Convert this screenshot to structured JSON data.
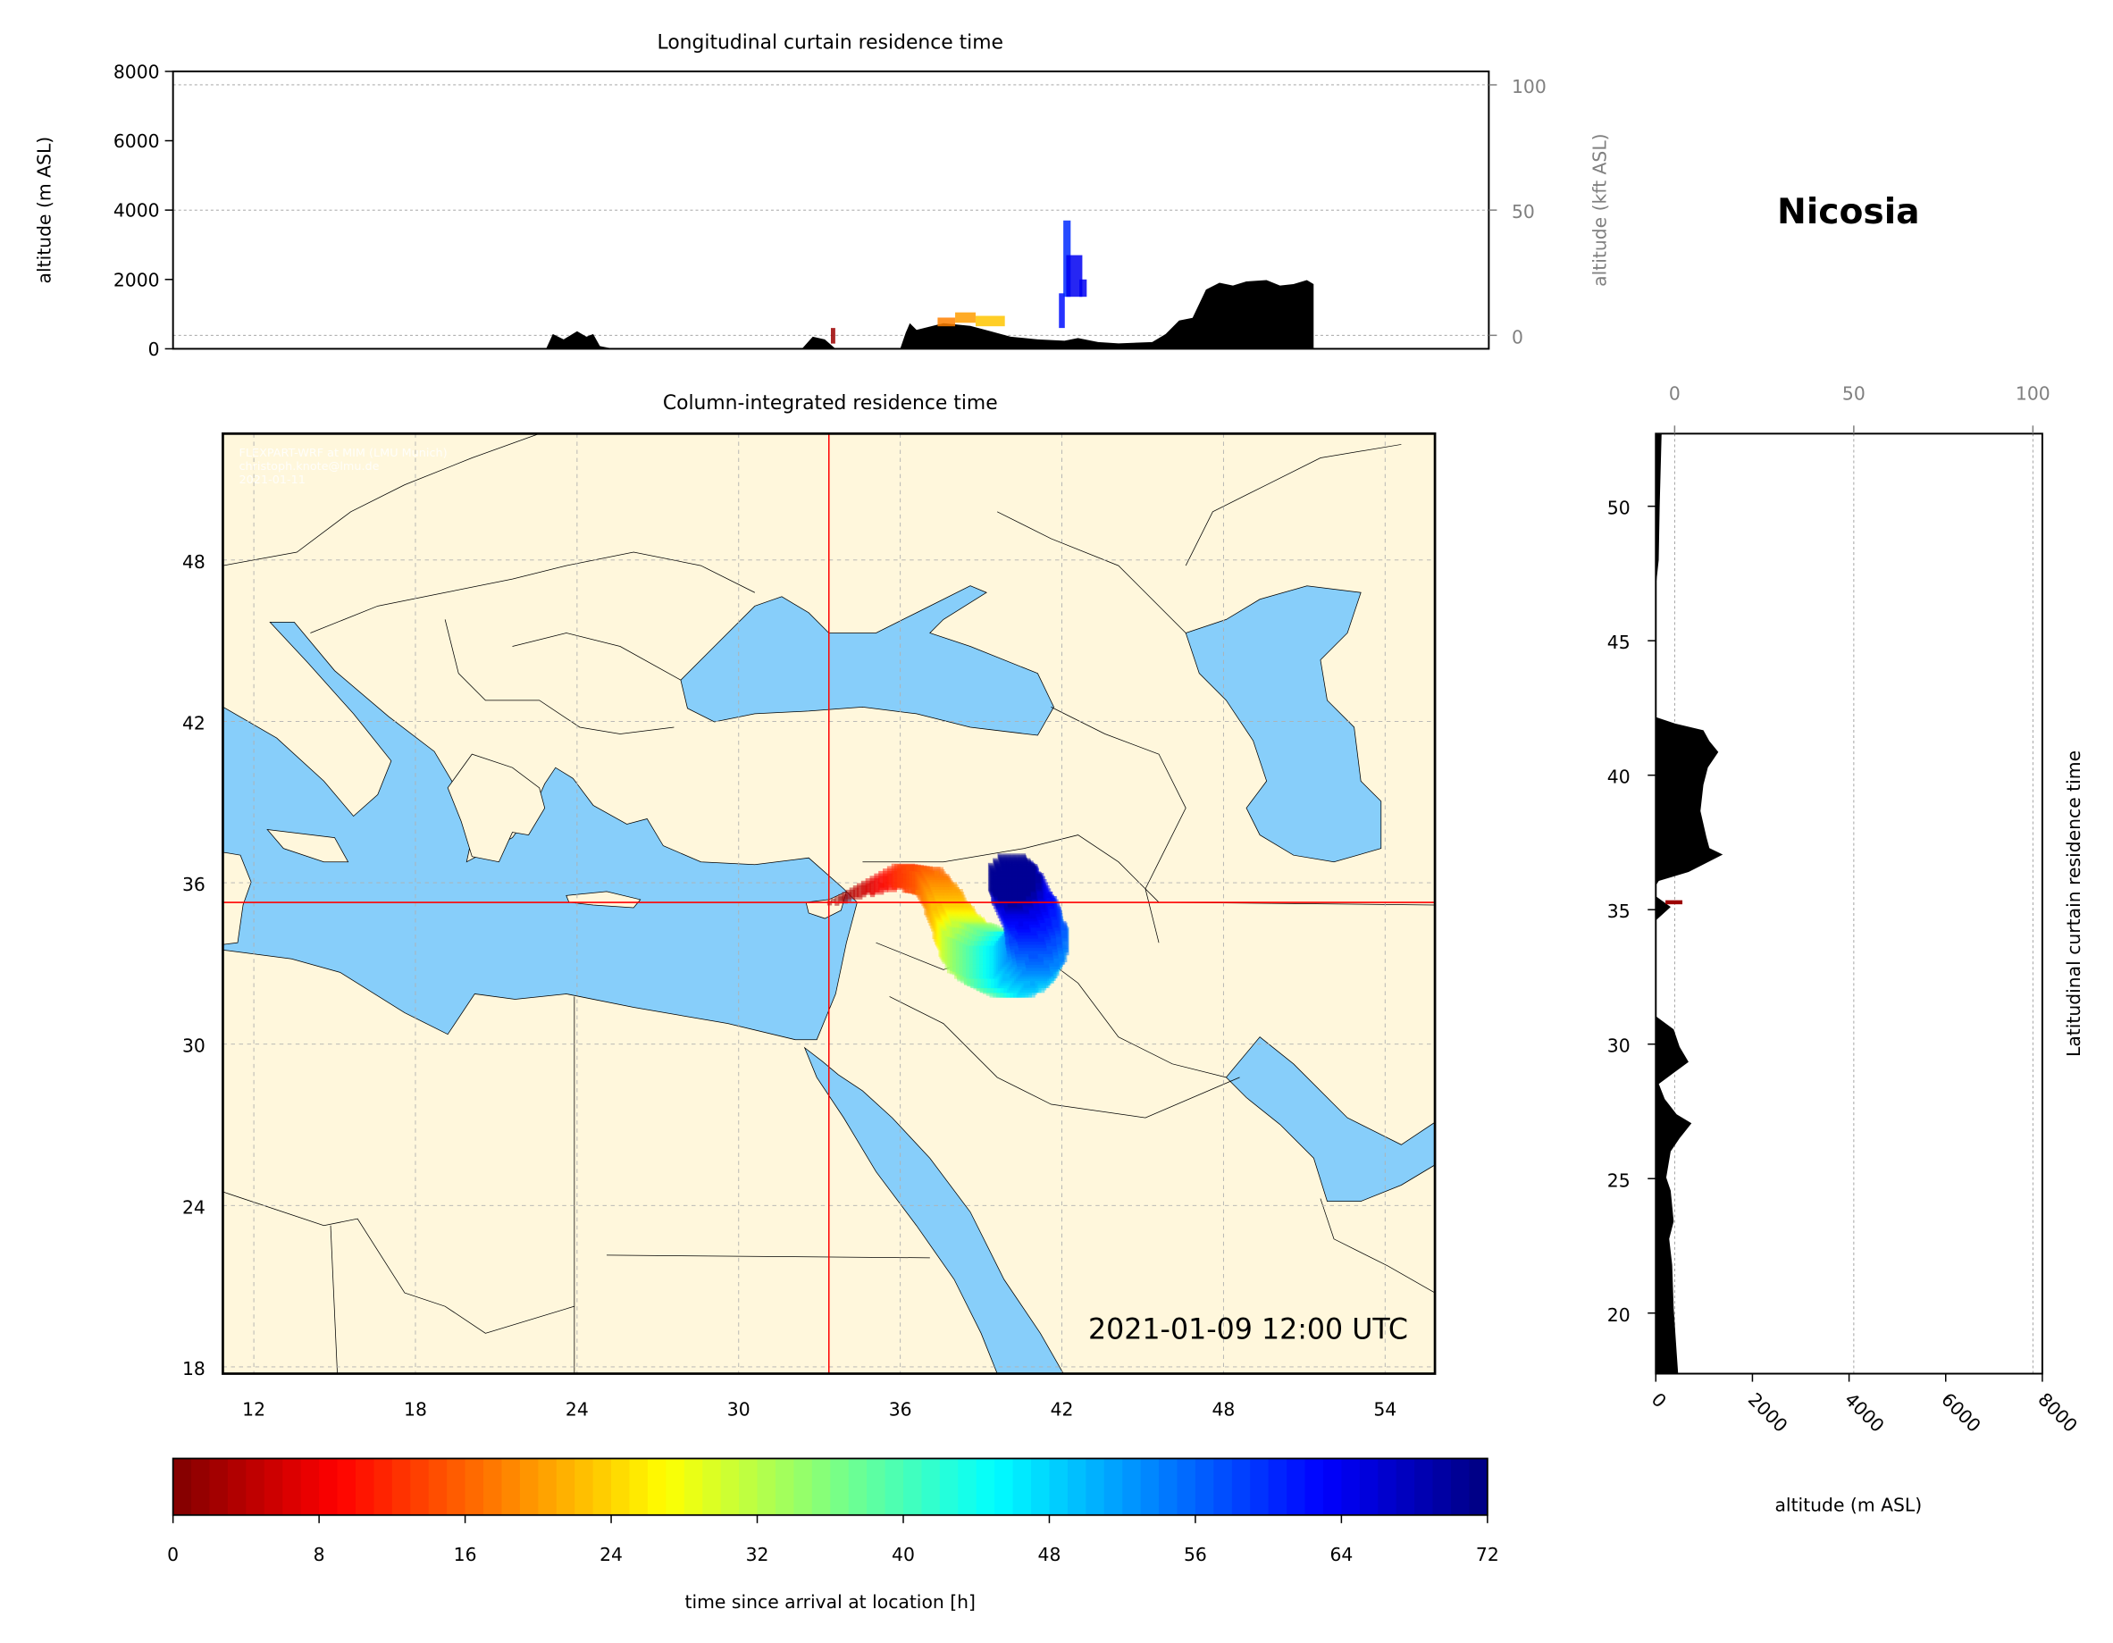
{
  "location": "Nicosia",
  "timestamp": "2021-01-09 12:00 UTC",
  "attribution": [
    "FLEXPART-WRF at MIM (LMU Munich)",
    "christoph.knote@lmu.de",
    "2021-01-11"
  ],
  "colors": {
    "land": "#fff7dc",
    "sea": "#87cefa",
    "crosshair": "#ff0000",
    "terrain": "#000000",
    "colormap": "jet"
  },
  "chart_data": [
    {
      "type": "area",
      "title": "Longitudinal curtain residence time",
      "xlabel": "",
      "ylabel": "altitude (m ASL)",
      "ylabel_right": "altitude (kft ASL)",
      "ylim": [
        0,
        8000
      ],
      "yticks": [
        "0",
        "2000",
        "4000",
        "6000",
        "8000"
      ],
      "yticks_right": [
        "0",
        "50",
        "100"
      ],
      "terrain_lon_alt": [
        [
          23.4,
          0
        ],
        [
          23.61,
          0
        ],
        [
          23.84,
          427
        ],
        [
          24.21,
          272
        ],
        [
          24.67,
          505
        ],
        [
          24.99,
          350
        ],
        [
          25.22,
          427
        ],
        [
          25.45,
          78
        ],
        [
          25.91,
          0
        ],
        [
          32.36,
          0
        ],
        [
          32.73,
          350
        ],
        [
          33.14,
          272
        ],
        [
          33.51,
          0
        ],
        [
          35.72,
          0
        ],
        [
          35.91,
          466
        ],
        [
          36.05,
          738
        ],
        [
          36.28,
          544
        ],
        [
          37.2,
          738
        ],
        [
          38.12,
          660
        ],
        [
          38.81,
          505
        ],
        [
          39.5,
          350
        ],
        [
          40.42,
          272
        ],
        [
          41.34,
          233
        ],
        [
          41.8,
          311
        ],
        [
          42.49,
          194
        ],
        [
          43.19,
          155
        ],
        [
          44.34,
          194
        ],
        [
          44.8,
          427
        ],
        [
          45.26,
          815
        ],
        [
          45.72,
          893
        ],
        [
          46.18,
          1709
        ],
        [
          46.64,
          1903
        ],
        [
          47.1,
          1825
        ],
        [
          47.56,
          1942
        ],
        [
          48.25,
          1980
        ],
        [
          48.71,
          1825
        ],
        [
          49.17,
          1864
        ],
        [
          49.63,
          1980
        ],
        [
          49.86,
          1864
        ],
        [
          49.86,
          0
        ]
      ],
      "residence_cells": [
        {
          "lon": [
            33.35,
            33.5
          ],
          "alt": [
            150,
            600
          ],
          "hours": 2
        },
        {
          "lon": [
            37.0,
            37.6
          ],
          "alt": [
            650,
            900
          ],
          "hours": 18
        },
        {
          "lon": [
            37.6,
            38.3
          ],
          "alt": [
            750,
            1050
          ],
          "hours": 20
        },
        {
          "lon": [
            38.3,
            39.3
          ],
          "alt": [
            650,
            950
          ],
          "hours": 23
        },
        {
          "lon": [
            41.15,
            41.35
          ],
          "alt": [
            600,
            1600
          ],
          "hours": 62
        },
        {
          "lon": [
            41.3,
            41.55
          ],
          "alt": [
            1500,
            3700
          ],
          "hours": 60
        },
        {
          "lon": [
            41.4,
            41.95
          ],
          "alt": [
            1500,
            2700
          ],
          "hours": 64
        },
        {
          "lon": [
            41.85,
            42.1
          ],
          "alt": [
            1500,
            2000
          ],
          "hours": 64
        }
      ]
    },
    {
      "type": "heatmap",
      "title": "Column-integrated residence time",
      "xticks": [
        "12",
        "18",
        "24",
        "30",
        "36",
        "42",
        "48",
        "54"
      ],
      "yticks": [
        "18",
        "24",
        "30",
        "36",
        "42",
        "48"
      ],
      "xlim": [
        10.85,
        55.85
      ],
      "ylim": [
        17.75,
        52.7
      ],
      "grid": true,
      "crosshair": {
        "lon": 33.35,
        "lat": 35.27
      },
      "plume_centerline_lon_lat_hours": [
        [
          33.35,
          35.27,
          0
        ],
        [
          34.6,
          35.77,
          5
        ],
        [
          36.1,
          36.28,
          12
        ],
        [
          37.1,
          36.03,
          16
        ],
        [
          37.6,
          35.27,
          20
        ],
        [
          38.1,
          34.27,
          25
        ],
        [
          38.6,
          33.52,
          32
        ],
        [
          39.6,
          33.02,
          40
        ],
        [
          40.6,
          33.02,
          48
        ],
        [
          41.1,
          33.77,
          54
        ],
        [
          40.85,
          34.77,
          60
        ],
        [
          40.35,
          35.77,
          66
        ],
        [
          40.1,
          36.28,
          72
        ]
      ]
    },
    {
      "type": "area",
      "title": "Latitudinal curtain residence time",
      "xlabel": "altitude (m ASL)",
      "xlim": [
        0,
        8000
      ],
      "xticks": [
        "0",
        "2000",
        "4000",
        "6000",
        "8000"
      ],
      "xticks_top": [
        "0",
        "50",
        "100"
      ],
      "yticks": [
        "20",
        "25",
        "30",
        "35",
        "40",
        "45",
        "50"
      ],
      "terrain_lat_alt": [
        [
          52.7,
          0
        ],
        [
          52.7,
          120
        ],
        [
          50,
          80
        ],
        [
          48,
          60
        ],
        [
          47,
          0
        ],
        [
          42.16,
          0
        ],
        [
          41.92,
          400
        ],
        [
          41.67,
          985
        ],
        [
          41.27,
          1109
        ],
        [
          40.86,
          1294
        ],
        [
          40.29,
          1078
        ],
        [
          39.64,
          985
        ],
        [
          38.67,
          924
        ],
        [
          37.7,
          1047
        ],
        [
          37.29,
          1109
        ],
        [
          37.05,
          1386
        ],
        [
          36.4,
          678
        ],
        [
          36.07,
          62
        ],
        [
          35.9,
          0
        ],
        [
          35.5,
          0
        ],
        [
          35.1,
          308
        ],
        [
          34.6,
          0
        ],
        [
          31.04,
          0
        ],
        [
          30.55,
          370
        ],
        [
          29.9,
          493
        ],
        [
          29.34,
          678
        ],
        [
          28.93,
          370
        ],
        [
          28.52,
          62
        ],
        [
          27.96,
          185
        ],
        [
          27.39,
          431
        ],
        [
          27.06,
          739
        ],
        [
          26.5,
          493
        ],
        [
          26.01,
          308
        ],
        [
          25.04,
          216
        ],
        [
          24.55,
          308
        ],
        [
          23.41,
          370
        ],
        [
          22.76,
          277
        ],
        [
          21.79,
          339
        ],
        [
          20.17,
          370
        ],
        [
          18.55,
          431
        ],
        [
          17.75,
          462
        ],
        [
          17.75,
          0
        ]
      ],
      "residence_cells": [
        {
          "lat": [
            35.2,
            35.35
          ],
          "alt": [
            200,
            550
          ],
          "hours": 2
        }
      ]
    },
    {
      "type": "colorbar",
      "xlabel": "time since arrival at location [h]",
      "range": [
        0,
        72
      ],
      "ticks": [
        "0",
        "8",
        "16",
        "24",
        "32",
        "40",
        "48",
        "56",
        "64",
        "72"
      ]
    }
  ]
}
